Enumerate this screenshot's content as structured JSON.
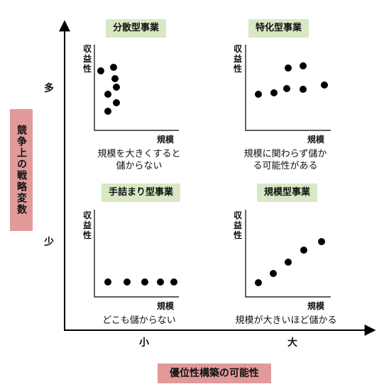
{
  "axes": {
    "y_title": "競争上の戦略変数",
    "x_title": "優位性構築の可能性",
    "y_high": "多",
    "y_low": "少",
    "x_low": "小",
    "x_high": "大"
  },
  "mini_axes": {
    "ylabel": [
      "収",
      "益",
      "性"
    ],
    "xlabel": "規模"
  },
  "quadrants": [
    {
      "title": "分散型事業",
      "desc_lines": [
        "規模を大きくすると",
        "儲からない"
      ]
    },
    {
      "title": "特化型事業",
      "desc_lines": [
        "規模に関わらず儲か",
        "る可能性がある"
      ]
    },
    {
      "title": "手詰まり型事業",
      "desc_lines": [
        "どこも儲からない"
      ]
    },
    {
      "title": "規模型事業",
      "desc_lines": [
        "規模が大きいほど儲かる"
      ]
    }
  ],
  "colors": {
    "title_bg": "#d9e8c4",
    "axis_box_bg": "#e09a9a",
    "dot": "#000000"
  }
}
